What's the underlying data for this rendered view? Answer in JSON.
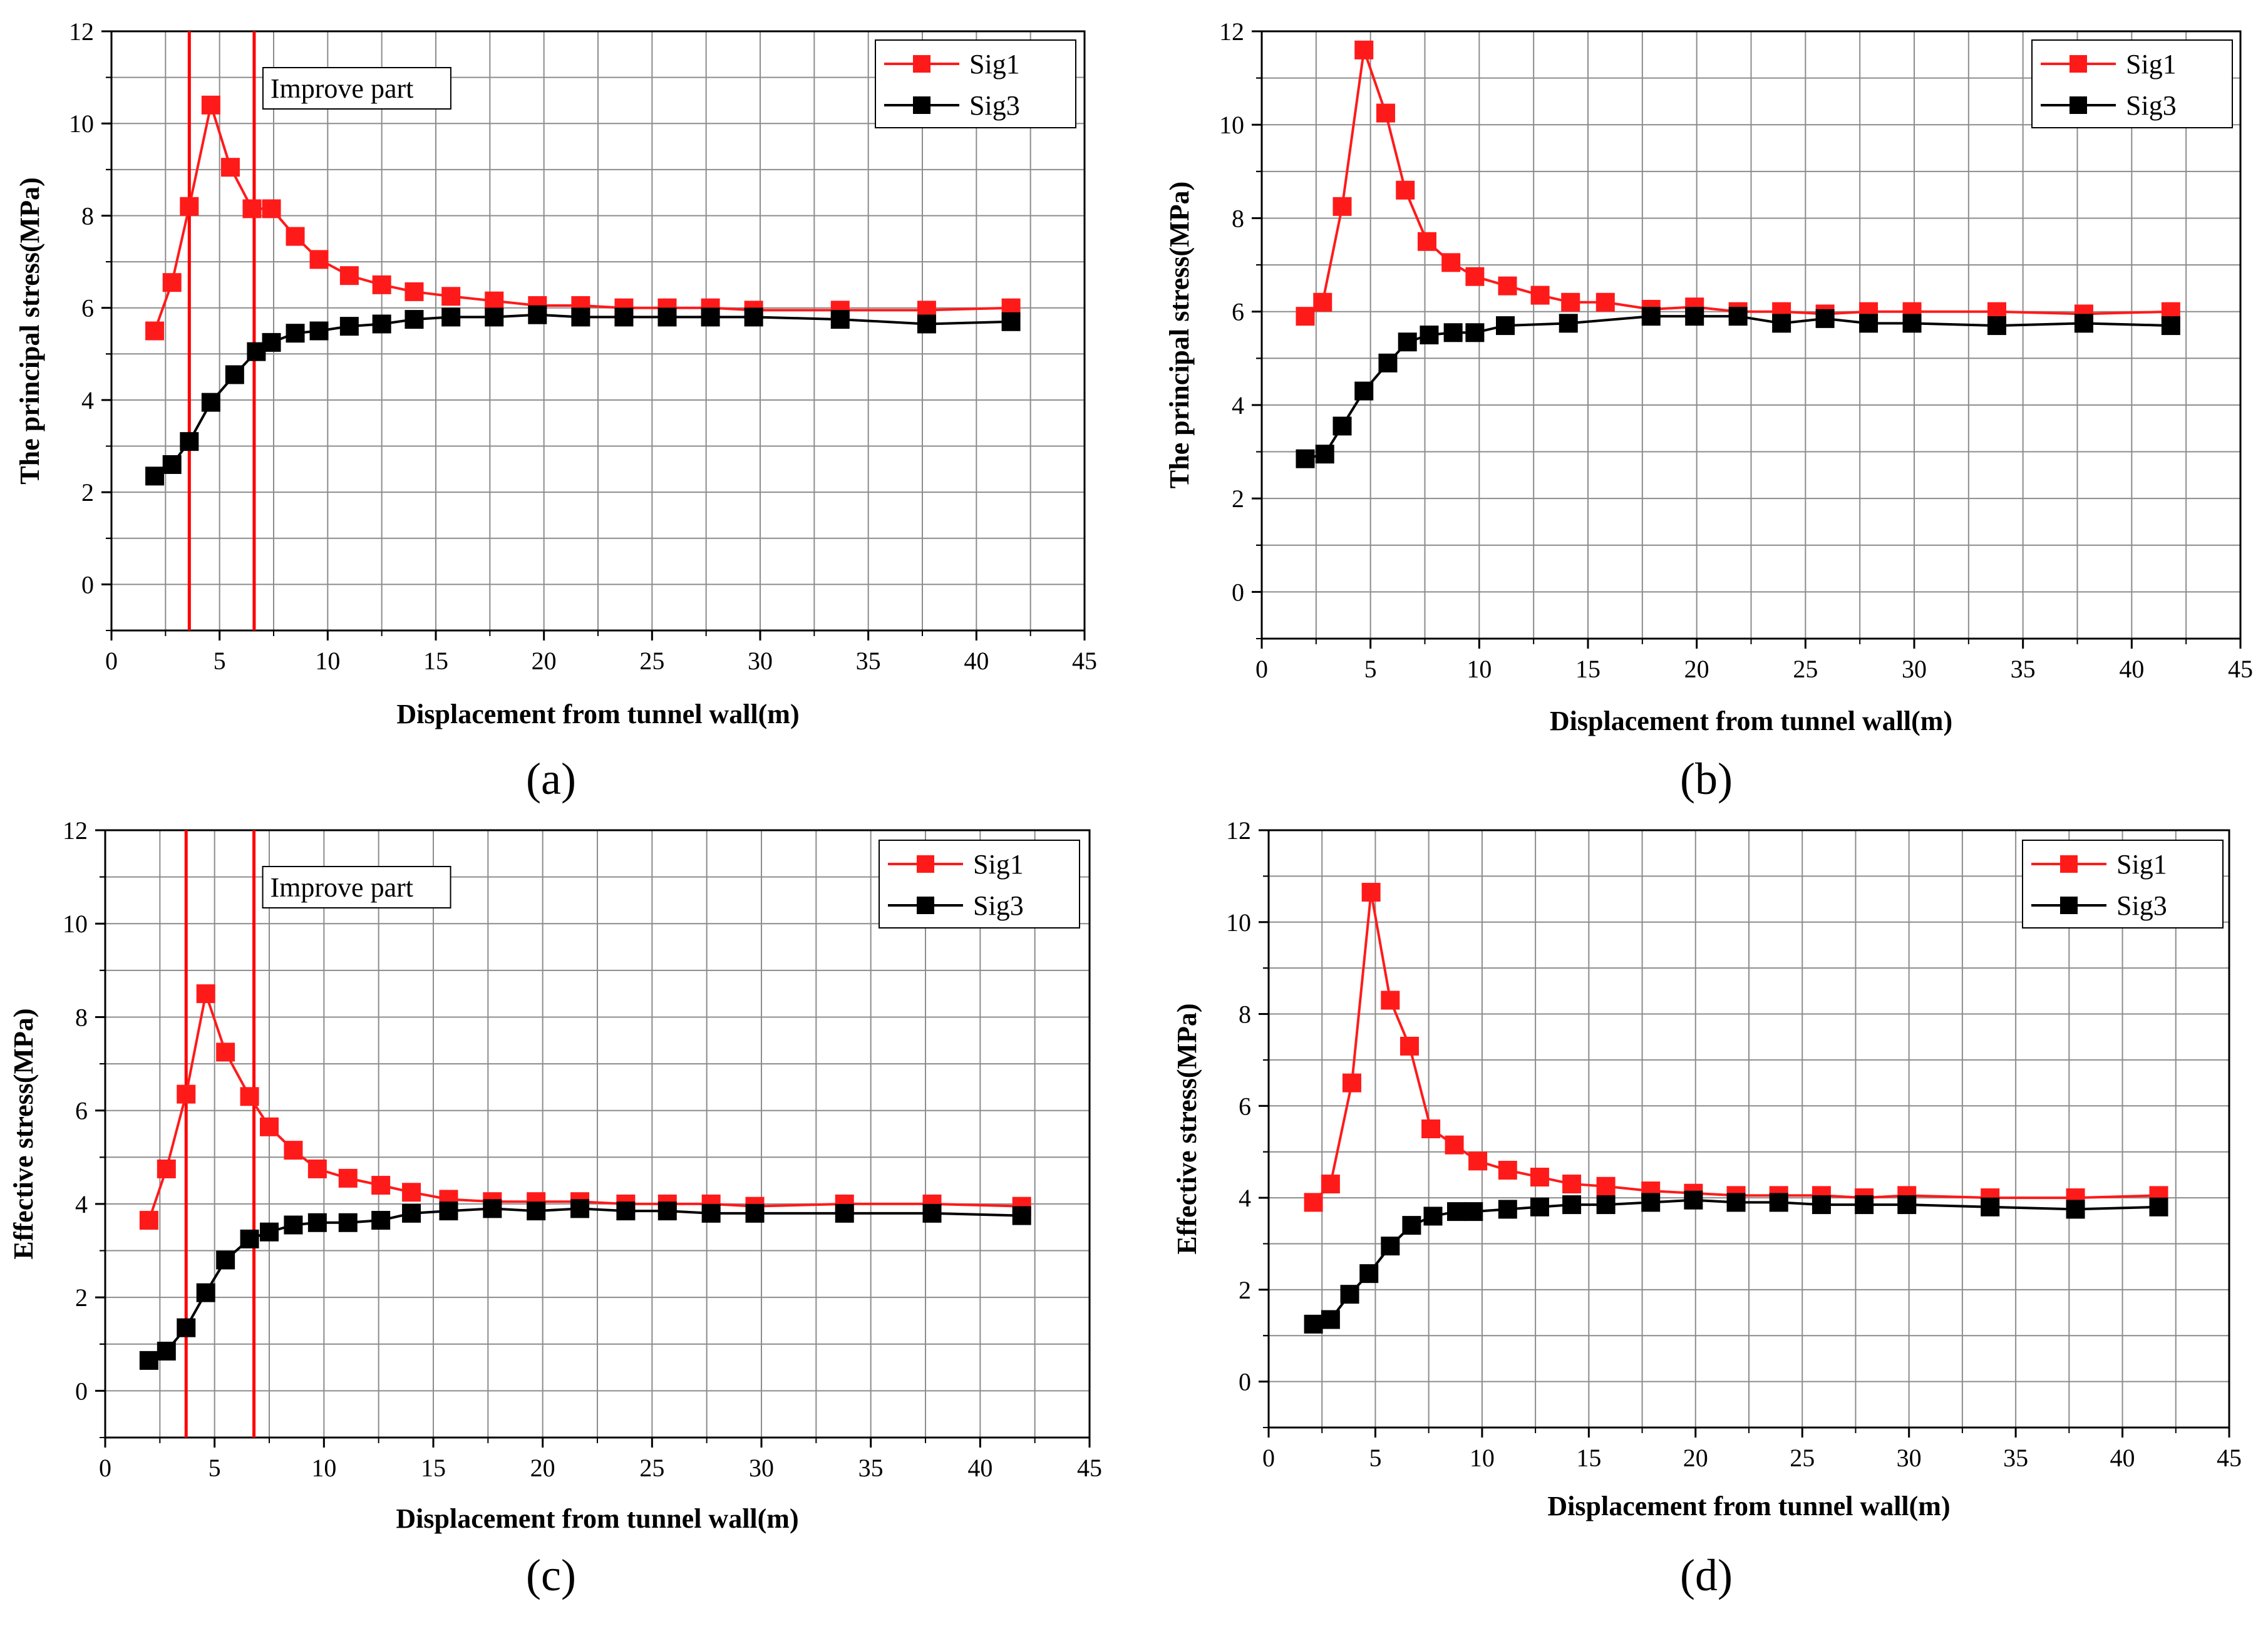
{
  "colors": {
    "sig1": "#ff1a1a",
    "sig3": "#000000",
    "grid": "#8c8c8c",
    "improve_line": "#ff0000",
    "axis": "#000000"
  },
  "chart_data": [
    {
      "type": "line",
      "panel_label": "(a)",
      "xlabel": "Displacement from tunnel wall(m)",
      "ylabel": "The principal stress(MPa)",
      "xlim": [
        0,
        45
      ],
      "ylim": [
        -1,
        12
      ],
      "xticks": [
        0,
        5,
        10,
        15,
        20,
        25,
        30,
        35,
        40,
        45
      ],
      "yticks": [
        0,
        2,
        4,
        6,
        8,
        10,
        12
      ],
      "grid": true,
      "legend": "top-right",
      "annotation": {
        "text": "Improve part",
        "x_range": [
          3.6,
          6.6
        ]
      },
      "series": [
        {
          "name": "Sig1",
          "color": "#ff1a1a",
          "x": [
            2,
            2.8,
            3.6,
            4.6,
            5.5,
            6.5,
            7.4,
            8.5,
            9.6,
            11,
            12.5,
            14,
            15.7,
            17.7,
            19.7,
            21.7,
            23.7,
            25.7,
            27.7,
            29.7,
            33.7,
            37.7,
            41.6
          ],
          "y": [
            5.5,
            6.55,
            8.2,
            10.4,
            9.05,
            8.15,
            8.15,
            7.55,
            7.05,
            6.7,
            6.5,
            6.35,
            6.25,
            6.15,
            6.05,
            6.05,
            6.0,
            6.0,
            6.0,
            5.95,
            5.95,
            5.95,
            6.0
          ]
        },
        {
          "name": "Sig3",
          "color": "#000000",
          "x": [
            2,
            2.8,
            3.6,
            4.6,
            5.7,
            6.7,
            7.4,
            8.5,
            9.6,
            11,
            12.5,
            14,
            15.7,
            17.7,
            19.7,
            21.7,
            23.7,
            25.7,
            27.7,
            29.7,
            33.7,
            37.7,
            41.6
          ],
          "y": [
            2.35,
            2.6,
            3.1,
            3.95,
            4.55,
            5.05,
            5.25,
            5.45,
            5.5,
            5.6,
            5.65,
            5.75,
            5.8,
            5.8,
            5.85,
            5.8,
            5.8,
            5.8,
            5.8,
            5.8,
            5.75,
            5.65,
            5.7
          ]
        }
      ]
    },
    {
      "type": "line",
      "panel_label": "(b)",
      "xlabel": "Displacement from tunnel wall(m)",
      "ylabel": "The principal stress(MPa)",
      "xlim": [
        0,
        45
      ],
      "ylim": [
        -1,
        12
      ],
      "xticks": [
        0,
        5,
        10,
        15,
        20,
        25,
        30,
        35,
        40,
        45
      ],
      "yticks": [
        0,
        2,
        4,
        6,
        8,
        10,
        12
      ],
      "grid": true,
      "legend": "top-right",
      "series": [
        {
          "name": "Sig1",
          "color": "#ff1a1a",
          "x": [
            2,
            2.8,
            3.7,
            4.7,
            5.7,
            6.6,
            7.6,
            8.7,
            9.8,
            11.3,
            12.8,
            14.2,
            15.8,
            17.9,
            19.9,
            21.9,
            23.9,
            25.9,
            27.9,
            29.9,
            33.8,
            37.8,
            41.8
          ],
          "y": [
            5.9,
            6.2,
            8.25,
            11.6,
            10.25,
            8.6,
            7.5,
            7.05,
            6.75,
            6.55,
            6.35,
            6.2,
            6.2,
            6.05,
            6.1,
            6.0,
            6.0,
            5.95,
            6.0,
            6.0,
            6.0,
            5.95,
            6.0
          ]
        },
        {
          "name": "Sig3",
          "color": "#000000",
          "x": [
            2,
            2.9,
            3.7,
            4.7,
            5.8,
            6.7,
            7.7,
            8.8,
            9.8,
            11.2,
            14.1,
            17.9,
            19.9,
            21.9,
            23.9,
            25.9,
            27.9,
            29.9,
            33.8,
            37.8,
            41.8
          ],
          "y": [
            2.85,
            2.95,
            3.55,
            4.3,
            4.9,
            5.35,
            5.5,
            5.55,
            5.55,
            5.7,
            5.75,
            5.9,
            5.9,
            5.9,
            5.75,
            5.85,
            5.75,
            5.75,
            5.7,
            5.75,
            5.7
          ]
        }
      ]
    },
    {
      "type": "line",
      "panel_label": "(c)",
      "xlabel": "Displacement from tunnel wall(m)",
      "ylabel": "Effective stress(MPa)",
      "xlim": [
        0,
        45
      ],
      "ylim": [
        -1,
        12
      ],
      "xticks": [
        0,
        5,
        10,
        15,
        20,
        25,
        30,
        35,
        40,
        45
      ],
      "yticks": [
        0,
        2,
        4,
        6,
        8,
        10,
        12
      ],
      "grid": true,
      "legend": "top-right",
      "annotation": {
        "text": "Improve part",
        "x_range": [
          3.7,
          6.8
        ]
      },
      "series": [
        {
          "name": "Sig1",
          "color": "#ff1a1a",
          "x": [
            2,
            2.8,
            3.7,
            4.6,
            5.5,
            6.6,
            7.5,
            8.6,
            9.7,
            11.1,
            12.6,
            14,
            15.7,
            17.7,
            19.7,
            21.7,
            23.8,
            25.7,
            27.7,
            29.7,
            33.8,
            37.8,
            41.9
          ],
          "y": [
            3.65,
            4.75,
            6.35,
            8.5,
            7.25,
            6.3,
            5.65,
            5.15,
            4.75,
            4.55,
            4.4,
            4.25,
            4.1,
            4.05,
            4.05,
            4.05,
            4.0,
            4.0,
            4.0,
            3.95,
            4.0,
            4.0,
            3.95
          ]
        },
        {
          "name": "Sig3",
          "color": "#000000",
          "x": [
            2,
            2.8,
            3.7,
            4.6,
            5.5,
            6.6,
            7.5,
            8.6,
            9.7,
            11.1,
            12.6,
            14,
            15.7,
            17.7,
            19.7,
            21.7,
            23.8,
            25.7,
            27.7,
            29.7,
            33.8,
            37.8,
            41.9
          ],
          "y": [
            0.65,
            0.85,
            1.35,
            2.1,
            2.8,
            3.25,
            3.4,
            3.55,
            3.6,
            3.6,
            3.65,
            3.8,
            3.85,
            3.9,
            3.85,
            3.9,
            3.85,
            3.85,
            3.8,
            3.8,
            3.8,
            3.8,
            3.75
          ]
        }
      ]
    },
    {
      "type": "line",
      "panel_label": "(d)",
      "xlabel": "Displacement from tunnel wall(m)",
      "ylabel": "Effective stress(MPa)",
      "xlim": [
        0,
        45
      ],
      "ylim": [
        -1,
        12
      ],
      "xticks": [
        0,
        5,
        10,
        15,
        20,
        25,
        30,
        35,
        40,
        45
      ],
      "yticks": [
        0,
        2,
        4,
        6,
        8,
        10,
        12
      ],
      "grid": true,
      "legend": "top-right",
      "series": [
        {
          "name": "Sig1",
          "color": "#ff1a1a",
          "x": [
            2.1,
            2.9,
            3.9,
            4.8,
            5.7,
            6.6,
            7.6,
            8.7,
            9.8,
            11.2,
            12.7,
            14.2,
            15.8,
            17.9,
            19.9,
            21.9,
            23.9,
            25.9,
            27.9,
            29.9,
            33.8,
            37.8,
            41.7
          ],
          "y": [
            3.9,
            4.3,
            6.5,
            10.65,
            8.3,
            7.3,
            5.5,
            5.15,
            4.8,
            4.6,
            4.45,
            4.3,
            4.25,
            4.15,
            4.1,
            4.05,
            4.05,
            4.05,
            4.0,
            4.05,
            4.0,
            4.0,
            4.05
          ]
        },
        {
          "name": "Sig3",
          "color": "#000000",
          "x": [
            2.1,
            2.9,
            3.8,
            4.7,
            5.7,
            6.7,
            7.7,
            8.8,
            9.6,
            11.2,
            12.7,
            14.2,
            15.8,
            17.9,
            19.9,
            21.9,
            23.9,
            25.9,
            27.9,
            29.9,
            33.8,
            37.8,
            41.7
          ],
          "y": [
            1.25,
            1.35,
            1.9,
            2.35,
            2.95,
            3.4,
            3.6,
            3.7,
            3.7,
            3.75,
            3.8,
            3.85,
            3.85,
            3.9,
            3.95,
            3.9,
            3.9,
            3.85,
            3.85,
            3.85,
            3.8,
            3.75,
            3.8
          ]
        }
      ]
    }
  ]
}
